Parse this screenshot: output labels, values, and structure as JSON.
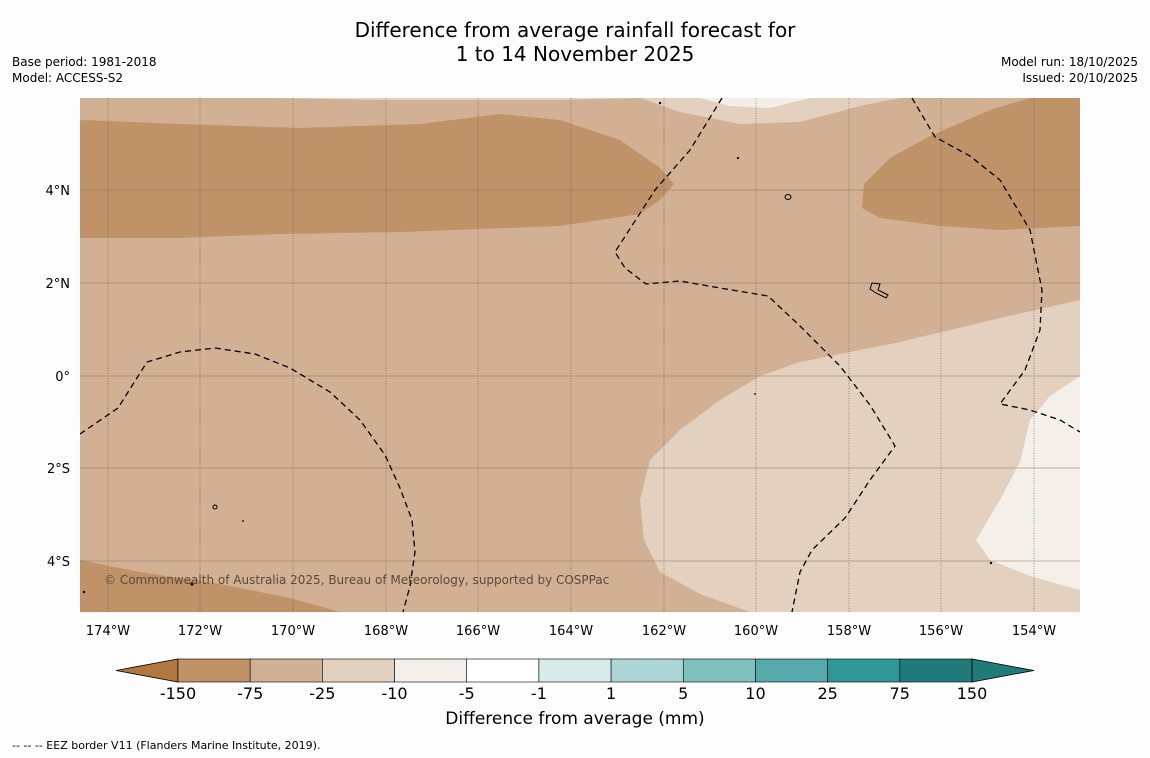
{
  "title": {
    "line1": "Difference from average rainfall forecast for",
    "line2": "1 to 14 November 2025"
  },
  "meta_left": {
    "base_period": "Base period: 1981-2018",
    "model": "Model: ACCESS-S2"
  },
  "meta_right": {
    "model_run": "Model run: 18/10/2025",
    "issued": "Issued: 20/10/2025"
  },
  "map": {
    "lon_ticks": [
      "174°W",
      "172°W",
      "170°W",
      "168°W",
      "166°W",
      "164°W",
      "162°W",
      "160°W",
      "158°W",
      "156°W",
      "154°W"
    ],
    "lat_ticks": [
      "4°N",
      "2°N",
      "0°",
      "2°S",
      "4°S"
    ],
    "copyright": "© Commonwealth of Australia 2025, Bureau of Meteorology, supported by COSPPac"
  },
  "colorbar": {
    "title": "Difference from average (mm)",
    "ticks": [
      "-150",
      "-75",
      "-25",
      "-10",
      "-5",
      "-1",
      "1",
      "5",
      "10",
      "25",
      "75",
      "150"
    ],
    "colors": [
      "#ae7840",
      "#c09268",
      "#d1b093",
      "#e4d0bf",
      "#f4efe9",
      "#ffffff",
      "#d6ebea",
      "#acd6d6",
      "#80c1c0",
      "#56a9a9",
      "#2f9795",
      "#1f7a78"
    ]
  },
  "footer": "--  --  -- EEZ border V11 (Flanders Marine Institute, 2019)."
}
